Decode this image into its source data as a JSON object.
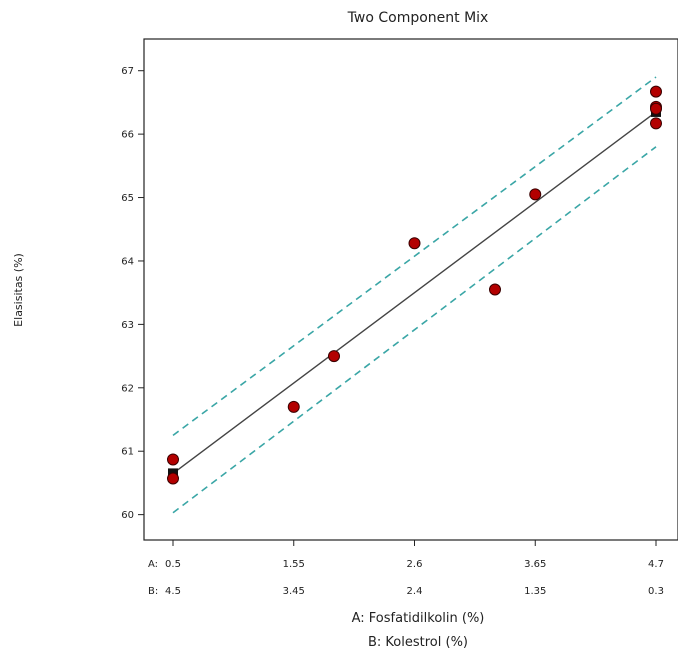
{
  "chart_data": {
    "type": "scatter",
    "title": "Two Component Mix",
    "ylabel": "Elasisitas (%)",
    "xlabel_a": "A: Fosfatidilkolin (%)",
    "xlabel_b": "B: Kolestrol (%)",
    "row_label_a": "A:",
    "row_label_b": "B:",
    "x_ticks_a": [
      "0.5",
      "1.55",
      "2.6",
      "3.65",
      "4.7"
    ],
    "x_ticks_b": [
      "4.5",
      "3.45",
      "2.4",
      "1.35",
      "0.3"
    ],
    "x_tick_values": [
      0.5,
      1.55,
      2.6,
      3.65,
      4.7
    ],
    "y_ticks": [
      "60",
      "61",
      "62",
      "63",
      "64",
      "65",
      "66",
      "67"
    ],
    "xlim": [
      0.5,
      4.7
    ],
    "ylim": [
      59.6,
      67.5
    ],
    "points": [
      {
        "x": 0.5,
        "y": 60.87
      },
      {
        "x": 0.5,
        "y": 60.57
      },
      {
        "x": 1.55,
        "y": 61.7
      },
      {
        "x": 1.9,
        "y": 62.5
      },
      {
        "x": 2.6,
        "y": 64.28
      },
      {
        "x": 3.3,
        "y": 63.55
      },
      {
        "x": 3.65,
        "y": 65.05
      },
      {
        "x": 4.7,
        "y": 66.67
      },
      {
        "x": 4.7,
        "y": 66.43
      },
      {
        "x": 4.7,
        "y": 66.4
      },
      {
        "x": 4.7,
        "y": 66.17
      }
    ],
    "fit_line": [
      {
        "x": 0.5,
        "y": 60.65
      },
      {
        "x": 4.7,
        "y": 66.35
      }
    ],
    "ci_upper": [
      {
        "x": 0.5,
        "y": 61.25
      },
      {
        "x": 4.7,
        "y": 66.9
      }
    ],
    "ci_lower": [
      {
        "x": 0.5,
        "y": 60.03
      },
      {
        "x": 4.7,
        "y": 65.8
      }
    ],
    "design_points": [
      {
        "x": 0.5,
        "y": 60.65
      },
      {
        "x": 4.7,
        "y": 66.35
      }
    ],
    "colors": {
      "point_fill": "#b30000",
      "point_stroke": "#3a0000",
      "fit_line": "#444444",
      "ci_line": "#3aa6a6",
      "design_point": "#111111"
    }
  }
}
